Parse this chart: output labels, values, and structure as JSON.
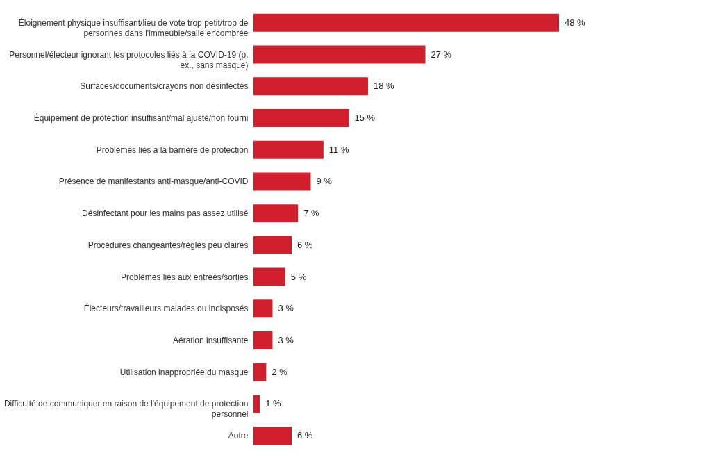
{
  "chart_data": {
    "type": "bar",
    "orientation": "horizontal",
    "categories": [
      "Éloignement physique insuffisant/lieu de vote trop petit/trop de personnes dans l'immeuble/salle encombrée",
      "Personnel/électeur ignorant les protocoles liés à la COVID-19 (p. ex., sans masque)",
      "Surfaces/documents/crayons non désinfectés",
      "Équipement de protection insuffisant/mal ajusté/non fourni",
      "Problèmes liés à la barrière de protection",
      "Présence de manifestants anti-masque/anti-COVID",
      "Désinfectant pour les mains pas assez utilisé",
      "Procédures changeantes/règles peu claires",
      "Problèmes liés aux entrées/sorties",
      "Électeurs/travailleurs malades ou indisposés",
      "Aération insuffisante",
      "Utilisation inappropriée du masque",
      "Difficulté de communiquer en raison de l'équipement de protection personnel",
      "Autre"
    ],
    "values": [
      48,
      27,
      18,
      15,
      11,
      9,
      7,
      6,
      5,
      3,
      3,
      2,
      1,
      6
    ],
    "value_labels": [
      "48 %",
      "27 %",
      "18 %",
      "15 %",
      "11 %",
      "9 %",
      "7 %",
      "6 %",
      "5 %",
      "3 %",
      "3 %",
      "2 %",
      "1 %",
      "6 %"
    ],
    "color": "#d0202e"
  }
}
